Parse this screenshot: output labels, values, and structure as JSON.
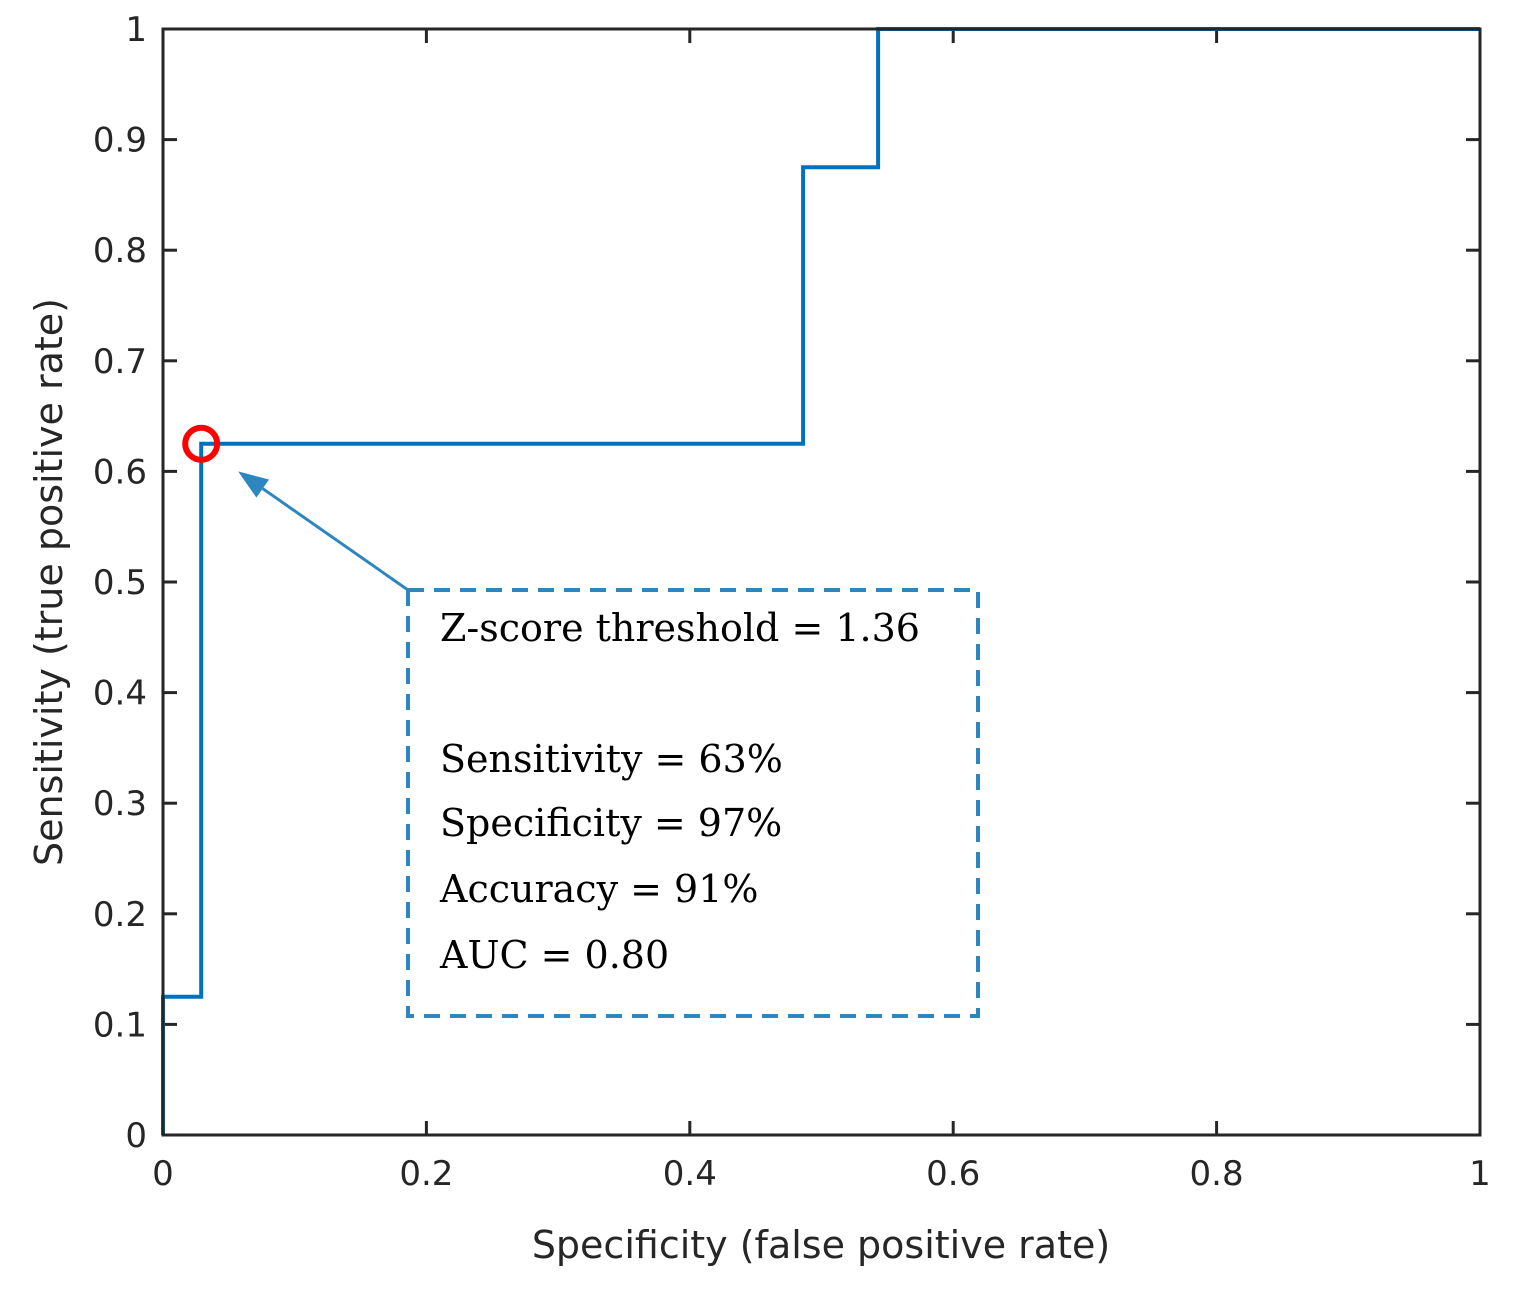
{
  "chart_data": {
    "type": "line",
    "title": "",
    "xlabel": "Specificity (false positive rate)",
    "ylabel": "Sensitivity (true positive rate)",
    "xlim": [
      0,
      1
    ],
    "ylim": [
      0,
      1
    ],
    "xticks": [
      0,
      0.2,
      0.4,
      0.6,
      0.8,
      1
    ],
    "xtick_labels": [
      "0",
      "0.2",
      "0.4",
      "0.6",
      "0.8",
      "1"
    ],
    "yticks": [
      0,
      0.1,
      0.2,
      0.3,
      0.4,
      0.5,
      0.6,
      0.7,
      0.8,
      0.9,
      1
    ],
    "ytick_labels": [
      "0",
      "0.1",
      "0.2",
      "0.3",
      "0.4",
      "0.5",
      "0.6",
      "0.7",
      "0.8",
      "0.9",
      "1"
    ],
    "grid": false,
    "series": [
      {
        "name": "ROC curve",
        "color": "#0072BD",
        "x": [
          0,
          0,
          0.029,
          0.029,
          0.486,
          0.486,
          0.543,
          0.543,
          1
        ],
        "y": [
          0,
          0.125,
          0.125,
          0.625,
          0.625,
          0.875,
          0.875,
          1,
          1
        ]
      }
    ],
    "highlight_point": {
      "x": 0.029,
      "y": 0.625,
      "color": "#FF0000",
      "shape": "circle"
    },
    "annotation": {
      "lines": [
        "Z-score threshold = 1.36",
        "",
        "Sensitivity = 63%",
        "Specificity = 97%",
        "Accuracy   = 91%",
        "AUC = 0.80"
      ],
      "box_style": "dashed",
      "color": "#2E86C1",
      "arrow_target": {
        "x": 0.057,
        "y": 0.6
      }
    }
  }
}
